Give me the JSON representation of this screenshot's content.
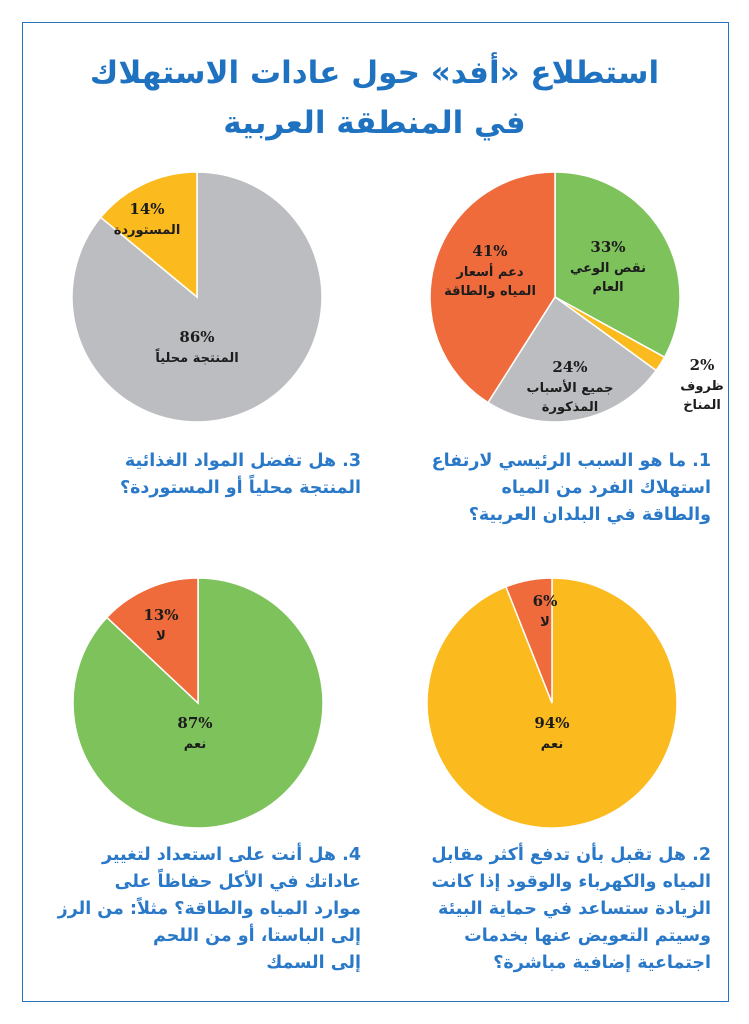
{
  "page": {
    "title_line1": "استطلاع «أفد» حول عادات الاستهلاك",
    "title_line2": "في المنطقة العربية"
  },
  "colors": {
    "title": "#1f72c0",
    "question": "#2a79c8",
    "frame": "#2a74bd"
  },
  "questions": [
    {
      "lines": [
        "1. ما هو السبب الرئيسي لارتفاع",
        "استهلاك الفرد من المياه",
        "والطاقة في البلدان العربية؟"
      ]
    },
    {
      "lines": [
        "2. هل تقبل بأن تدفع أكثر مقابل",
        "المياه والكهرباء والوقود إذا كانت",
        "الزيادة ستساعد في حماية البيئة",
        "وسيتم التعويض عنها بخدمات",
        "اجتماعية إضافية مباشرة؟"
      ]
    },
    {
      "lines": [
        "3. هل تفضل المواد الغذائية",
        "المنتجة محلياً أو المستوردة؟"
      ]
    },
    {
      "lines": [
        "4. هل أنت على استعداد لتغيير",
        "عاداتك في الأكل حفاظاً على",
        "موارد المياه والطاقة؟ مثلاً: من الرز",
        "إلى الباستا، أو من اللحم",
        "إلى السمك"
      ]
    }
  ],
  "chart_data": [
    {
      "type": "pie",
      "id": "q1",
      "slices": [
        {
          "pct_label": "33%",
          "value": 33,
          "label_lines": [
            "نقص الوعي",
            "العام"
          ],
          "color": "#7dc25b"
        },
        {
          "pct_label": "2%",
          "value": 2,
          "label_lines": [
            "ظروف",
            "المناخ"
          ],
          "color": "#fbbb1f"
        },
        {
          "pct_label": "24%",
          "value": 24,
          "label_lines": [
            "جميع الأسباب",
            "المذكورة"
          ],
          "color": "#bcbdc0"
        },
        {
          "pct_label": "41%",
          "value": 41,
          "label_lines": [
            "دعم أسعار",
            "المياه والطاقة"
          ],
          "color": "#ef6b3b"
        }
      ]
    },
    {
      "type": "pie",
      "id": "q2",
      "slices": [
        {
          "pct_label": "94%",
          "value": 94,
          "label_lines": [
            "نعم"
          ],
          "color": "#fbbb1f"
        },
        {
          "pct_label": "6%",
          "value": 6,
          "label_lines": [
            "لا"
          ],
          "color": "#ef6b3b"
        }
      ]
    },
    {
      "type": "pie",
      "id": "q3",
      "slices": [
        {
          "pct_label": "86%",
          "value": 86,
          "label_lines": [
            "المنتجة محلياً"
          ],
          "color": "#bcbdc0"
        },
        {
          "pct_label": "14%",
          "value": 14,
          "label_lines": [
            "المستوردة"
          ],
          "color": "#fbbb1f"
        }
      ]
    },
    {
      "type": "pie",
      "id": "q4",
      "slices": [
        {
          "pct_label": "87%",
          "value": 87,
          "label_lines": [
            "نعم"
          ],
          "color": "#7dc25b"
        },
        {
          "pct_label": "13%",
          "value": 13,
          "label_lines": [
            "لا"
          ],
          "color": "#ef6b3b"
        }
      ]
    }
  ]
}
